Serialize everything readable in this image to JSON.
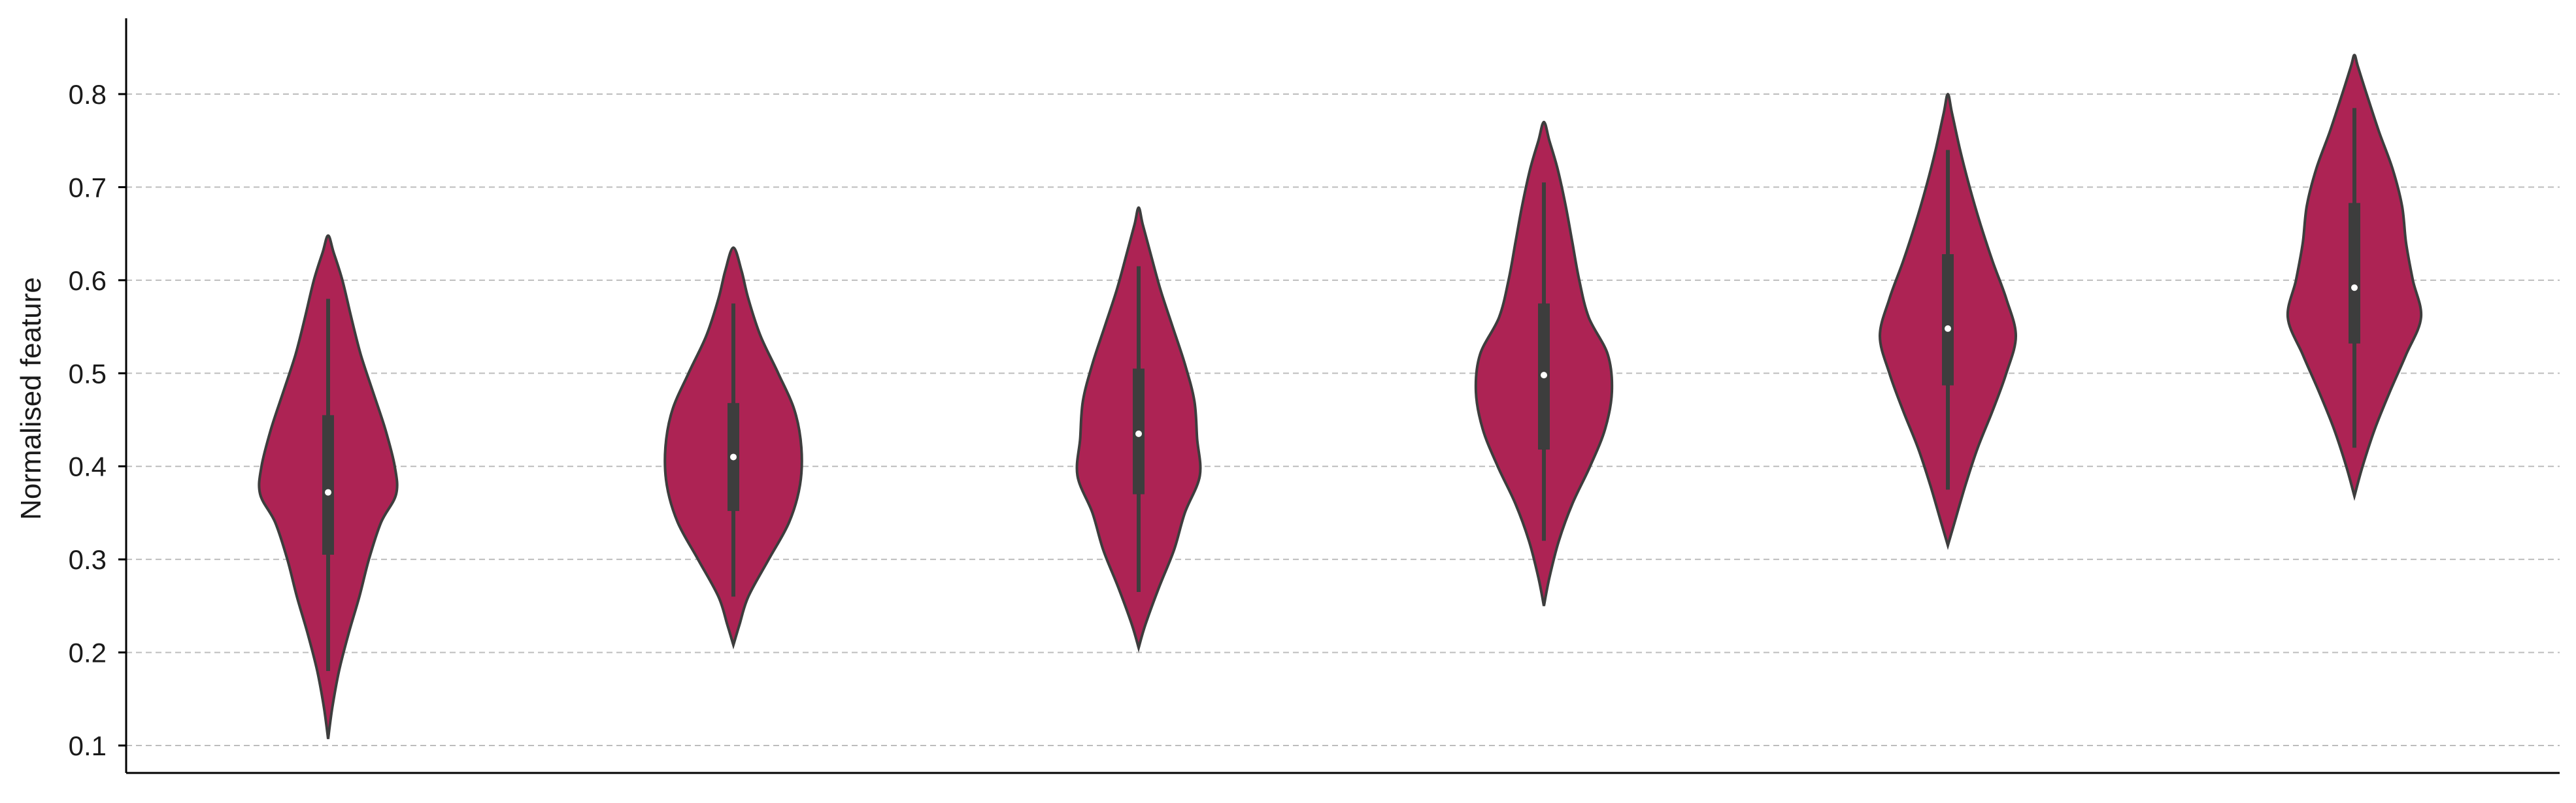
{
  "chart_data": {
    "type": "violin",
    "title": "",
    "xlabel": "",
    "ylabel": "Normalised feature",
    "ylim": [
      0.075,
      0.88
    ],
    "yticks": [
      0.1,
      0.2,
      0.3,
      0.4,
      0.5,
      0.6,
      0.7,
      0.8
    ],
    "ytick_labels": [
      "0.1",
      "0.2",
      "0.3",
      "0.4",
      "0.5",
      "0.6",
      "0.7",
      "0.8"
    ],
    "grid": "horizontal-dashed",
    "colors": {
      "fill": "#ad2354",
      "edge": "#3d3d3d",
      "median": "#ffffff",
      "grid": "#bdbdbd"
    },
    "violins": [
      {
        "min": 0.107,
        "max": 0.648,
        "whisker_low": 0.18,
        "whisker_high": 0.58,
        "q1": 0.305,
        "median": 0.372,
        "q3": 0.455,
        "density": [
          [
            0.107,
            0.0
          ],
          [
            0.14,
            0.06
          ],
          [
            0.18,
            0.16
          ],
          [
            0.22,
            0.3
          ],
          [
            0.26,
            0.46
          ],
          [
            0.3,
            0.6
          ],
          [
            0.34,
            0.78
          ],
          [
            0.37,
            1.0
          ],
          [
            0.4,
            0.98
          ],
          [
            0.44,
            0.84
          ],
          [
            0.48,
            0.66
          ],
          [
            0.52,
            0.48
          ],
          [
            0.56,
            0.34
          ],
          [
            0.6,
            0.21
          ],
          [
            0.63,
            0.08
          ],
          [
            0.648,
            0.0
          ]
        ]
      },
      {
        "min": 0.208,
        "max": 0.635,
        "whisker_low": 0.26,
        "whisker_high": 0.575,
        "q1": 0.352,
        "median": 0.41,
        "q3": 0.468,
        "density": [
          [
            0.208,
            0.0
          ],
          [
            0.23,
            0.09
          ],
          [
            0.26,
            0.22
          ],
          [
            0.3,
            0.52
          ],
          [
            0.34,
            0.82
          ],
          [
            0.38,
            0.98
          ],
          [
            0.42,
            1.0
          ],
          [
            0.46,
            0.9
          ],
          [
            0.5,
            0.66
          ],
          [
            0.54,
            0.4
          ],
          [
            0.58,
            0.22
          ],
          [
            0.61,
            0.12
          ],
          [
            0.635,
            0.0
          ]
        ]
      },
      {
        "min": 0.205,
        "max": 0.678,
        "whisker_low": 0.265,
        "whisker_high": 0.615,
        "q1": 0.37,
        "median": 0.435,
        "q3": 0.505,
        "density": [
          [
            0.205,
            0.0
          ],
          [
            0.23,
            0.1
          ],
          [
            0.27,
            0.3
          ],
          [
            0.31,
            0.52
          ],
          [
            0.35,
            0.68
          ],
          [
            0.39,
            0.9
          ],
          [
            0.43,
            0.86
          ],
          [
            0.47,
            0.82
          ],
          [
            0.51,
            0.68
          ],
          [
            0.55,
            0.5
          ],
          [
            0.59,
            0.32
          ],
          [
            0.63,
            0.17
          ],
          [
            0.66,
            0.06
          ],
          [
            0.678,
            0.0
          ]
        ]
      },
      {
        "min": 0.25,
        "max": 0.77,
        "whisker_low": 0.32,
        "whisker_high": 0.705,
        "q1": 0.418,
        "median": 0.498,
        "q3": 0.575,
        "density": [
          [
            0.25,
            0.0
          ],
          [
            0.28,
            0.08
          ],
          [
            0.32,
            0.22
          ],
          [
            0.36,
            0.42
          ],
          [
            0.4,
            0.68
          ],
          [
            0.44,
            0.9
          ],
          [
            0.48,
            1.0
          ],
          [
            0.52,
            0.94
          ],
          [
            0.56,
            0.66
          ],
          [
            0.6,
            0.52
          ],
          [
            0.64,
            0.42
          ],
          [
            0.68,
            0.32
          ],
          [
            0.72,
            0.2
          ],
          [
            0.75,
            0.08
          ],
          [
            0.77,
            0.0
          ]
        ]
      },
      {
        "min": 0.315,
        "max": 0.8,
        "whisker_low": 0.375,
        "whisker_high": 0.74,
        "q1": 0.487,
        "median": 0.548,
        "q3": 0.628,
        "density": [
          [
            0.315,
            0.0
          ],
          [
            0.34,
            0.1
          ],
          [
            0.38,
            0.26
          ],
          [
            0.42,
            0.44
          ],
          [
            0.46,
            0.66
          ],
          [
            0.5,
            0.86
          ],
          [
            0.54,
            1.0
          ],
          [
            0.58,
            0.86
          ],
          [
            0.62,
            0.66
          ],
          [
            0.66,
            0.48
          ],
          [
            0.7,
            0.32
          ],
          [
            0.74,
            0.18
          ],
          [
            0.78,
            0.06
          ],
          [
            0.8,
            0.0
          ]
        ]
      },
      {
        "min": 0.368,
        "max": 0.842,
        "whisker_low": 0.42,
        "whisker_high": 0.785,
        "q1": 0.532,
        "median": 0.592,
        "q3": 0.683,
        "density": [
          [
            0.368,
            0.0
          ],
          [
            0.4,
            0.12
          ],
          [
            0.44,
            0.3
          ],
          [
            0.48,
            0.52
          ],
          [
            0.52,
            0.76
          ],
          [
            0.56,
            0.98
          ],
          [
            0.6,
            0.86
          ],
          [
            0.64,
            0.76
          ],
          [
            0.68,
            0.7
          ],
          [
            0.72,
            0.56
          ],
          [
            0.76,
            0.36
          ],
          [
            0.8,
            0.18
          ],
          [
            0.83,
            0.05
          ],
          [
            0.842,
            0.0
          ]
        ]
      }
    ]
  }
}
